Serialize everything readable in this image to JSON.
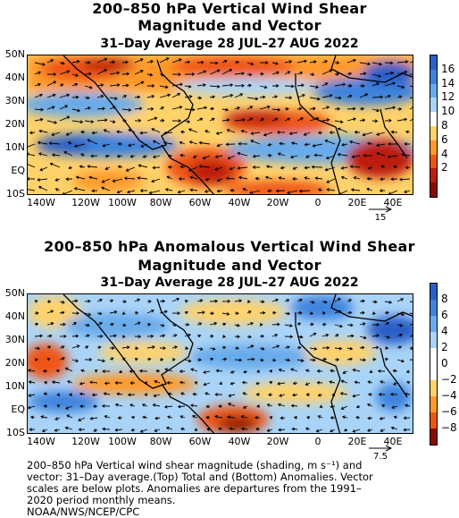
{
  "top_panel": {
    "title": "200–850 hPa Vertical Wind Shear",
    "subtitle1": "Magnitude and Vector",
    "subtitle2": "31–Day Average 28 JUL–27 AUG 2022",
    "lat_labels": [
      "50N",
      "40N",
      "30N",
      "20N",
      "10N",
      "EQ",
      "10S"
    ],
    "lon_labels": [
      "140W",
      "120W",
      "100W",
      "80W",
      "60W",
      "40W",
      "20W",
      "0",
      "20E",
      "40E"
    ],
    "vector_ref": "15",
    "colorbar_labels": [
      "16",
      "14",
      "12",
      "10",
      "8",
      "6",
      "4",
      "2"
    ],
    "colorbar_colors": [
      "#2a5fc8",
      "#3d83de",
      "#68aaeb",
      "#aad4f7",
      "#ffffff",
      "#ffd26a",
      "#ff9a2a",
      "#ee5512",
      "#bb1e0a",
      "#8a0a05"
    ]
  },
  "bottom_panel": {
    "title": "200–850 hPa Anomalous Vertical Wind Shear",
    "subtitle1": "Magnitude and Vector",
    "subtitle2": "31–Day Average 28 JUL–27 AUG 2022",
    "lat_labels": [
      "50N",
      "40N",
      "30N",
      "20N",
      "10N",
      "EQ",
      "10S"
    ],
    "lon_labels": [
      "140W",
      "120W",
      "100W",
      "80W",
      "60W",
      "40W",
      "20W",
      "0",
      "20E",
      "40E"
    ],
    "vector_ref": "7.5",
    "colorbar_labels": [
      "8",
      "6",
      "4",
      "2",
      "0",
      "−2",
      "−4",
      "−6",
      "−8"
    ],
    "colorbar_colors": [
      "#2a5fc8",
      "#3d83de",
      "#68aaeb",
      "#aad4f7",
      "#ffffff",
      "#ffffff",
      "#ffd26a",
      "#ff9a2a",
      "#ee5512",
      "#8a0a05"
    ]
  },
  "caption": {
    "line1": "200–850 hPa Vertical wind shear magnitude (shading, m s⁻¹) and",
    "line2": "vector: 31–Day average.(Top) Total and (Bottom) Anomalies. Vector",
    "line3": "scales are below plots. Anomalies are departures from the 1991–",
    "line4": "2020 period monthly means.",
    "line5": "NOAA/NWS/NCEP/CPC"
  }
}
